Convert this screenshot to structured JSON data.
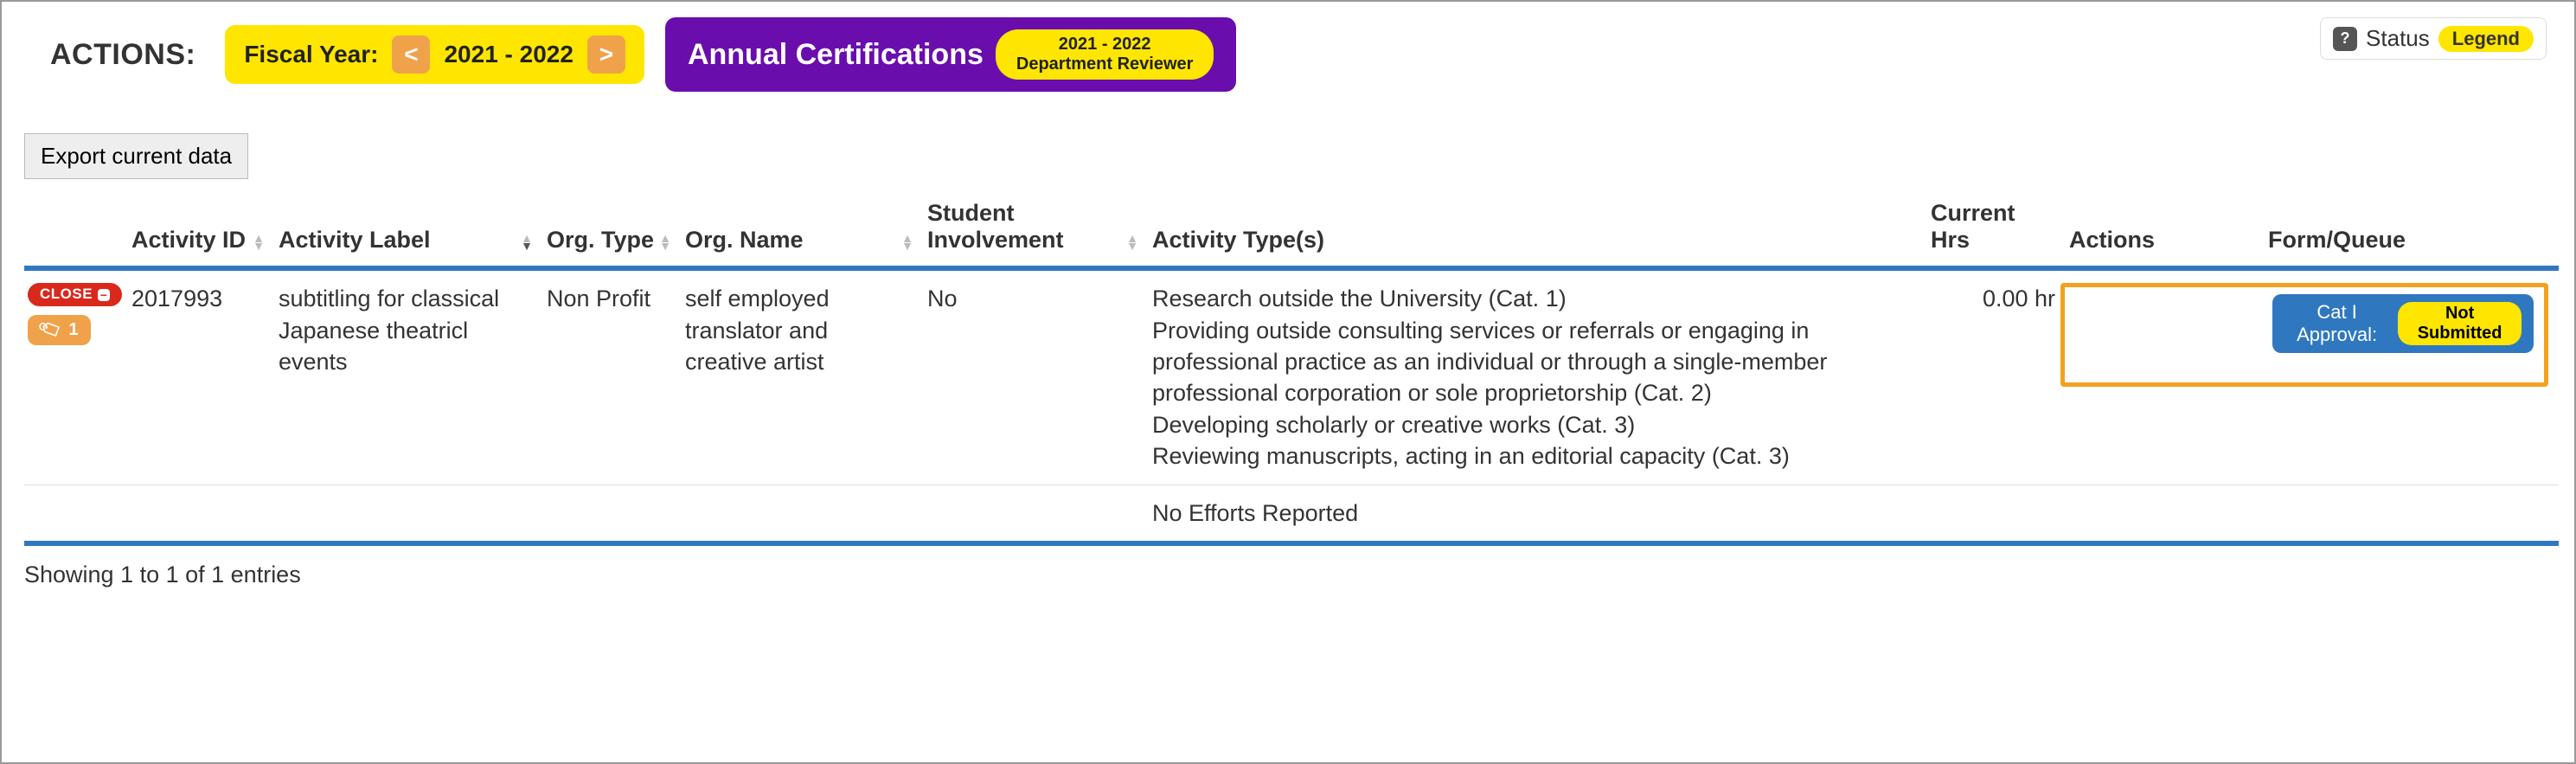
{
  "colors": {
    "yellow": "#ffe600",
    "orange": "#f0a24a",
    "purple": "#6a0dad",
    "blue": "#2f78c0",
    "red": "#d9291c",
    "highlight_border": "#f2a11f"
  },
  "topbar": {
    "actions_label": "ACTIONS:",
    "fy_label": "Fiscal Year:",
    "fy_prev": "<",
    "fy_value": "2021 - 2022",
    "fy_next": ">",
    "cert_title": "Annual Certifications",
    "cert_badge_line1": "2021 - 2022",
    "cert_badge_line2": "Department Reviewer"
  },
  "topright": {
    "status_label": "Status",
    "legend_label": "Legend"
  },
  "export_label": "Export current data",
  "columns": {
    "ctl": "",
    "id": "Activity ID",
    "label": "Activity Label",
    "otype": "Org. Type",
    "oname": "Org. Name",
    "stu": "Student Involvement",
    "atype": "Activity Type(s)",
    "hrs": "Current Hrs",
    "act": "Actions",
    "fq": "Form/Queue"
  },
  "row": {
    "close_label": "CLOSE",
    "tag_count": "1",
    "id": "2017993",
    "label": "subtitling for classical Japanese theatricl events",
    "otype": "Non Profit",
    "oname": "self employed translator and creative artist",
    "stu": "No",
    "atype_lines": [
      "Research outside the University (Cat. 1)",
      "Providing outside consulting services or referrals or engaging in professional practice as an individual or through a single-member professional corporation or sole proprietorship (Cat. 2)",
      "Developing scholarly or creative works (Cat. 3)",
      "Reviewing manuscripts, acting in an editorial capacity (Cat. 3)"
    ],
    "hrs": "0.00 hr",
    "approval_label": "Cat I Approval:",
    "approval_status": "Not Submitted"
  },
  "no_efforts": "No Efforts Reported",
  "entries_text": "Showing 1 to 1 of 1 entries"
}
